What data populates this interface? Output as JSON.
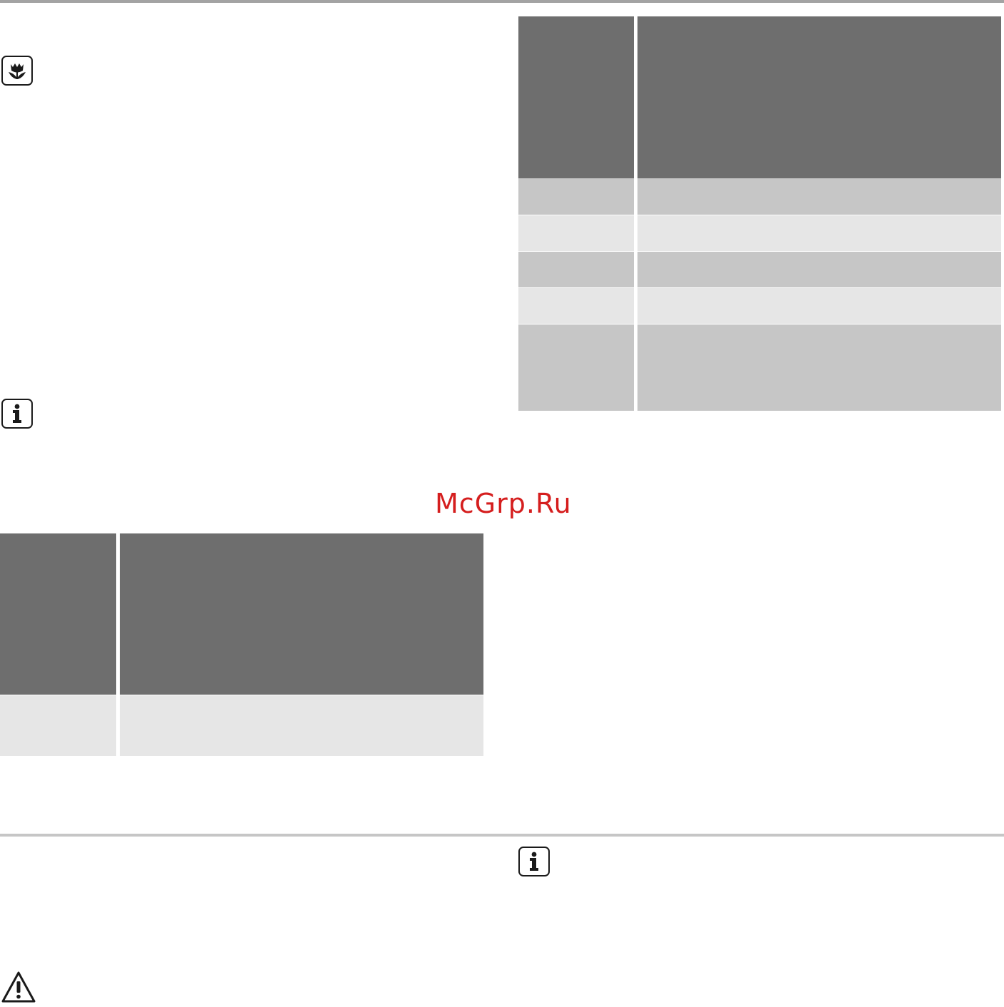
{
  "watermark": {
    "text": "McGrp.Ru",
    "color": "#d51e1e"
  },
  "icons": {
    "eco": "eco-leaf-icon",
    "info_left": "info-icon",
    "info_right": "info-icon",
    "warning": "warning-icon"
  },
  "colors": {
    "table_header": "#6e6e6e",
    "row_mid": "#c6c6c6",
    "row_light": "#e6e6e6",
    "rule": "#a3a3a3"
  }
}
